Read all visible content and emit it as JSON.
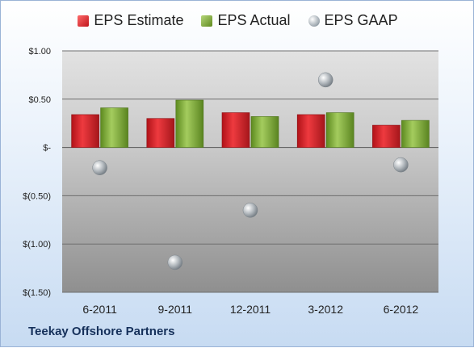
{
  "chart_data": {
    "type": "bar",
    "categories": [
      "6-2011",
      "9-2011",
      "12-2011",
      "3-2012",
      "6-2012"
    ],
    "series": [
      {
        "name": "EPS Estimate",
        "values": [
          0.34,
          0.3,
          0.36,
          0.34,
          0.23
        ],
        "color": "#d42a2f"
      },
      {
        "name": "EPS Actual",
        "values": [
          0.41,
          0.49,
          0.32,
          0.36,
          0.28
        ],
        "color": "#8cb547"
      },
      {
        "name": "EPS GAAP",
        "values": [
          -0.21,
          -1.19,
          -0.65,
          0.7,
          -0.18
        ],
        "color": "#a9b1b8",
        "style": "scatter"
      }
    ],
    "ylim": [
      -1.5,
      1.0
    ],
    "yticks": [
      1.0,
      0.5,
      0.0,
      -0.5,
      -1.0,
      -1.5
    ],
    "ytick_labels": [
      "$1.00",
      "$0.50",
      "$-",
      "$(0.50)",
      "$(1.00)",
      "$(1.50)"
    ],
    "grid": true,
    "legend": "top",
    "company": "Teekay Offshore Partners"
  }
}
